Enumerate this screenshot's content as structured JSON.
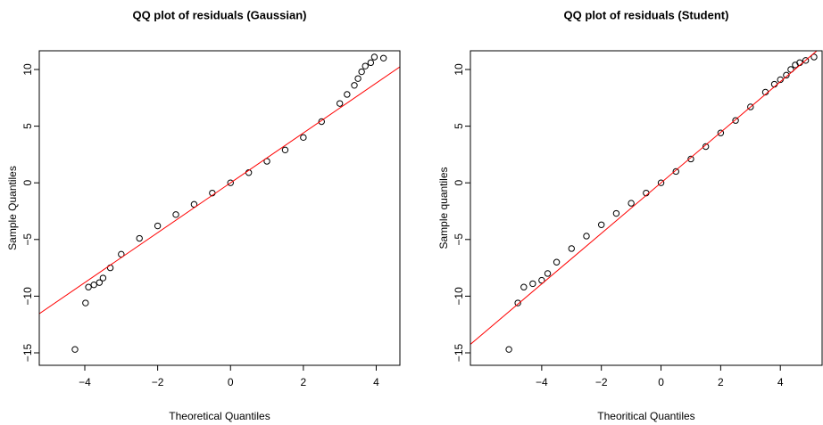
{
  "chart_data": [
    {
      "type": "scatter",
      "title": "QQ plot of residuals (Gaussian)",
      "x_label": "Theoretical Quantiles",
      "y_label": "Sample Quantiles",
      "x": [
        -4.27,
        -3.98,
        -3.9,
        -3.75,
        -3.6,
        -3.5,
        -3.3,
        -3.0,
        -2.5,
        -2.0,
        -1.5,
        -1.0,
        -0.5,
        0,
        0.5,
        1.0,
        1.5,
        2.0,
        2.5,
        3.0,
        3.2,
        3.4,
        3.5,
        3.6,
        3.7,
        3.85,
        3.95,
        4.2
      ],
      "values": [
        -14.7,
        -10.6,
        -9.2,
        -9.0,
        -8.8,
        -8.4,
        -7.5,
        -6.3,
        -4.9,
        -3.8,
        -2.8,
        -1.9,
        -0.9,
        0,
        0.9,
        1.9,
        2.9,
        4.0,
        5.4,
        7.0,
        7.8,
        8.6,
        9.2,
        9.8,
        10.3,
        10.6,
        11.1,
        11.0
      ],
      "color": "#000000",
      "ref_line": {
        "intercept": 0,
        "slope": 2.2,
        "color": "#ff0000"
      },
      "xlim": [
        -5.25,
        4.65
      ],
      "ylim": [
        -16.1,
        11.65
      ],
      "xticks": [
        {
          "value": -4,
          "label": "−4"
        },
        {
          "value": -2,
          "label": "−2"
        },
        0,
        2,
        4
      ],
      "yticks": [
        {
          "value": -15,
          "label": "−15"
        },
        {
          "value": -10,
          "label": "−10"
        },
        {
          "value": -5,
          "label": "−5"
        },
        0,
        5,
        10
      ]
    },
    {
      "type": "scatter",
      "title": "QQ plot of residuals (Student)",
      "x_label": "Theoritical Quantiles",
      "y_label": "Sample quantiles",
      "x": [
        -5.1,
        -4.8,
        -4.6,
        -4.3,
        -4.0,
        -3.8,
        -3.5,
        -3.0,
        -2.5,
        -2.0,
        -1.5,
        -1.0,
        -0.5,
        0,
        0.5,
        1.0,
        1.5,
        2.0,
        2.5,
        3.0,
        3.5,
        3.8,
        4.0,
        4.2,
        4.35,
        4.5,
        4.65,
        4.85,
        5.13
      ],
      "values": [
        -14.7,
        -10.6,
        -9.2,
        -8.9,
        -8.6,
        -8.0,
        -7.0,
        -5.8,
        -4.7,
        -3.7,
        -2.7,
        -1.8,
        -0.9,
        0,
        1.0,
        2.1,
        3.2,
        4.4,
        5.5,
        6.7,
        8.0,
        8.7,
        9.1,
        9.5,
        10.0,
        10.4,
        10.6,
        10.8,
        11.1
      ],
      "color": "#000000",
      "ref_line": {
        "intercept": 0,
        "slope": 2.23,
        "color": "#ff0000"
      },
      "xlim": [
        -6.39,
        5.4
      ],
      "ylim": [
        -16.1,
        11.65
      ],
      "xticks": [
        {
          "value": -4,
          "label": "−4"
        },
        {
          "value": -2,
          "label": "−2"
        },
        0,
        2,
        4
      ],
      "yticks": [
        {
          "value": -15,
          "label": "−15"
        },
        {
          "value": -10,
          "label": "−10"
        },
        {
          "value": -5,
          "label": "−5"
        },
        0,
        5,
        10
      ]
    }
  ]
}
